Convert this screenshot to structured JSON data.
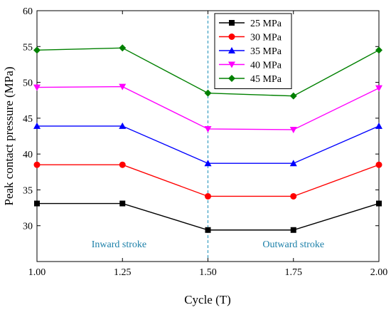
{
  "chart_data": {
    "type": "line",
    "title": "",
    "xlabel": "Cycle (T)",
    "ylabel": "Peak contact pressure (MPa)",
    "xlim": [
      1.0,
      2.0
    ],
    "ylim": [
      25,
      60
    ],
    "x": [
      1.0,
      1.25,
      1.5,
      1.75,
      2.0
    ],
    "x_tick_labels": [
      "1.00",
      "1.25",
      "1.50",
      "1.75",
      "2.00"
    ],
    "y_ticks": [
      30,
      35,
      40,
      45,
      50,
      55,
      60
    ],
    "y_tick_labels": [
      "30",
      "35",
      "40",
      "45",
      "50",
      "55",
      "60"
    ],
    "grid": false,
    "legend_position": "top-right",
    "series": [
      {
        "name": "25 MPa",
        "color": "#000000",
        "marker": "square",
        "values": [
          33.1,
          33.1,
          29.4,
          29.4,
          33.1
        ]
      },
      {
        "name": "30 MPa",
        "color": "#ff0000",
        "marker": "circle",
        "values": [
          38.5,
          38.5,
          34.1,
          34.1,
          38.5
        ]
      },
      {
        "name": "35 MPa",
        "color": "#0000ff",
        "marker": "triangle-up",
        "values": [
          43.9,
          43.9,
          38.7,
          38.7,
          43.9
        ]
      },
      {
        "name": "40 MPa",
        "color": "#ff00ff",
        "marker": "triangle-down",
        "values": [
          49.3,
          49.4,
          43.5,
          43.4,
          49.2
        ]
      },
      {
        "name": "45 MPa",
        "color": "#008000",
        "marker": "diamond",
        "values": [
          54.5,
          54.8,
          48.5,
          48.1,
          54.5
        ]
      }
    ],
    "reference_line": {
      "x": 1.5,
      "color": "#1a8fb8",
      "style": "dashed"
    },
    "annotations": [
      {
        "text": "Inward stroke",
        "x": 1.24,
        "y": 27.0,
        "color": "#1a7fa8"
      },
      {
        "text": "Outward stroke",
        "x": 1.75,
        "y": 27.0,
        "color": "#1a7fa8"
      }
    ]
  }
}
